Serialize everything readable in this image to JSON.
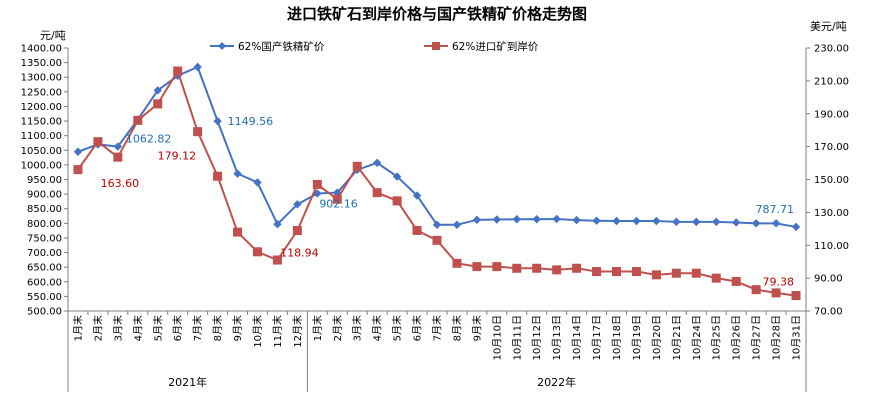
{
  "chart_data": {
    "type": "line",
    "title": "进口铁矿石到岸价格与国产铁精矿价格走势图",
    "ylabel_left": "元/吨",
    "ylabel_right": "美元/吨",
    "ylim_left": [
      500,
      1400
    ],
    "ylim_right": [
      70,
      230
    ],
    "yticks_left": [
      "500.00",
      "550.00",
      "600.00",
      "650.00",
      "700.00",
      "750.00",
      "800.00",
      "850.00",
      "900.00",
      "950.00",
      "1000.00",
      "1050.00",
      "1100.00",
      "1150.00",
      "1200.00",
      "1250.00",
      "1300.00",
      "1350.00",
      "1400.00"
    ],
    "yticks_right": [
      "70.00",
      "90.00",
      "110.00",
      "130.00",
      "150.00",
      "170.00",
      "190.00",
      "210.00",
      "230.00"
    ],
    "categories": [
      "1月末",
      "2月末",
      "3月末",
      "4月末",
      "5月末",
      "6月末",
      "7月末",
      "8月末",
      "9月末",
      "10月末",
      "11月末",
      "12月末",
      "1月末",
      "2月末",
      "3月末",
      "4月末",
      "5月末",
      "6月末",
      "7月末",
      "8月末",
      "9月末",
      "10月10日",
      "10月11日",
      "10月12日",
      "10月13日",
      "10月14日",
      "10月17日",
      "10月18日",
      "10月19日",
      "10月20日",
      "10月21日",
      "10月24日",
      "10月25日",
      "10月26日",
      "10月27日",
      "10月28日",
      "10月31日"
    ],
    "groups": [
      {
        "label": "2021年",
        "start": 0,
        "end": 11
      },
      {
        "label": "2022年",
        "start": 12,
        "end": 36
      }
    ],
    "legend_position": "top",
    "grid": false,
    "series": [
      {
        "name": "62%国产铁精矿价",
        "axis": "left",
        "color": "#4472c4",
        "marker": "diamond",
        "values": [
          1045,
          1070,
          1062.82,
          1155,
          1255,
          1305,
          1335,
          1149.56,
          970,
          940,
          797,
          865,
          902.16,
          905,
          983,
          1007,
          960,
          895,
          795,
          795,
          812,
          813,
          814,
          814,
          815,
          811,
          809,
          808,
          808,
          808,
          805,
          805,
          805,
          803,
          800,
          800,
          787.71
        ]
      },
      {
        "name": "62%进口矿到岸价",
        "axis": "right",
        "color": "#c0504d",
        "marker": "square",
        "values": [
          156,
          173,
          163.6,
          186,
          196,
          216,
          179.12,
          152,
          118,
          106,
          101,
          118.94,
          147,
          138,
          158,
          142,
          137,
          119,
          113,
          99,
          97,
          97,
          96,
          96,
          95,
          96,
          94,
          94,
          94,
          92,
          93,
          93,
          90,
          88,
          83,
          81,
          79.38
        ]
      }
    ],
    "annotations": [
      {
        "series": 0,
        "index": 2,
        "text": "1062.82"
      },
      {
        "series": 0,
        "index": 7,
        "text": "1149.56"
      },
      {
        "series": 0,
        "index": 12,
        "text": "902.16"
      },
      {
        "series": 0,
        "index": 36,
        "text": "787.71"
      },
      {
        "series": 1,
        "index": 2,
        "text": "163.60"
      },
      {
        "series": 1,
        "index": 6,
        "text": "179.12"
      },
      {
        "series": 1,
        "index": 11,
        "text": "118.94"
      },
      {
        "series": 1,
        "index": 36,
        "text": "79.38"
      }
    ]
  }
}
